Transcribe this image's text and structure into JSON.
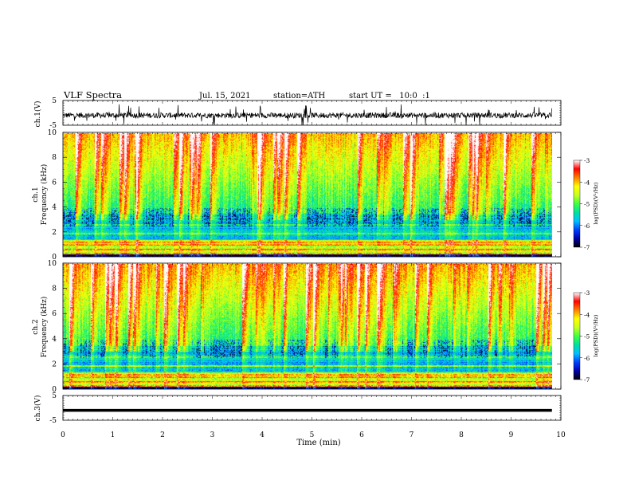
{
  "header": {
    "title": "VLF Spectra",
    "date": "Jul. 15, 2021",
    "station": "station=ATH",
    "start_ut": "start UT =   10:0  :1"
  },
  "chart_data": [
    {
      "type": "line",
      "panel": "ch1-waveform",
      "ylabel": "ch.1(V)",
      "xlim": [
        0,
        10
      ],
      "ylim": [
        -5,
        5
      ],
      "y_ticks": [
        "5",
        "-5"
      ],
      "x_extent_min": 9.82,
      "description": "noisy voltage trace centered near -1 V with spikes reaching about +4 and -5 V"
    },
    {
      "type": "heatmap",
      "panel": "ch1-spectrogram",
      "ylabel": "ch.1\nFrequency (kHz)",
      "xlim": [
        0,
        10
      ],
      "ylim": [
        0,
        10
      ],
      "y_ticks": [
        "0",
        "2",
        "4",
        "6",
        "8",
        "10"
      ],
      "x_extent_min": 9.82,
      "colorbar": {
        "label": "log(PSD)(V²/Hz)",
        "range": [
          -7,
          -3
        ],
        "ticks": [
          "-3",
          "-4",
          "-5",
          "-6",
          "-7"
        ]
      }
    },
    {
      "type": "heatmap",
      "panel": "ch2-spectrogram",
      "ylabel": "ch.2\nFrequency (kHz)",
      "xlim": [
        0,
        10
      ],
      "ylim": [
        0,
        10
      ],
      "y_ticks": [
        "0",
        "2",
        "4",
        "6",
        "8",
        "10"
      ],
      "x_extent_min": 9.82,
      "colorbar": {
        "label": "log(PSD)(V²/Hz)",
        "range": [
          -7,
          -3
        ],
        "ticks": [
          "-3",
          "-4",
          "-5",
          "-6",
          "-7"
        ]
      }
    },
    {
      "type": "line",
      "panel": "ch3-waveform",
      "ylabel": "ch.3(V)",
      "xlim": [
        0,
        10
      ],
      "ylim": [
        -5,
        5
      ],
      "y_ticks": [
        "5",
        "-5"
      ],
      "x_extent_min": 9.82,
      "description": "flat trace near -1 V"
    }
  ],
  "x_axis": {
    "label": "Time (min)",
    "ticks": [
      "0",
      "1",
      "2",
      "3",
      "4",
      "5",
      "6",
      "7",
      "8",
      "9",
      "10"
    ]
  },
  "colors": {
    "scale": [
      "#000000",
      "#0000aa",
      "#0040ff",
      "#00c0ff",
      "#00e0a0",
      "#40ff40",
      "#c8ff20",
      "#ffff00",
      "#ff8000",
      "#ff0000",
      "#ffffff"
    ]
  }
}
